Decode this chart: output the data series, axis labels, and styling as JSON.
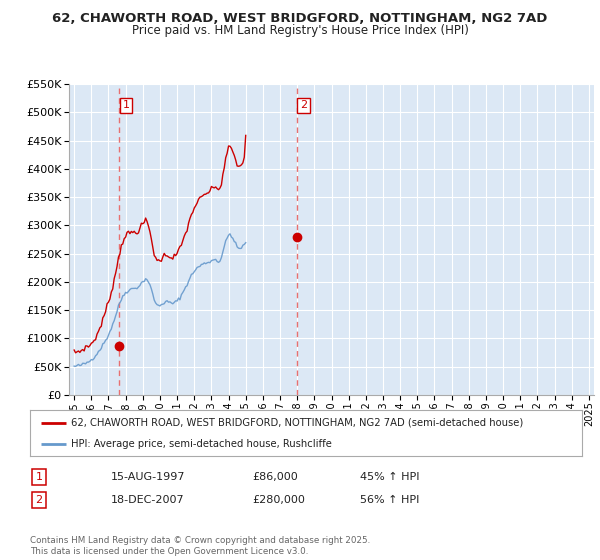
{
  "title": "62, CHAWORTH ROAD, WEST BRIDGFORD, NOTTINGHAM, NG2 7AD",
  "subtitle": "Price paid vs. HM Land Registry's House Price Index (HPI)",
  "legend_line1": "62, CHAWORTH ROAD, WEST BRIDGFORD, NOTTINGHAM, NG2 7AD (semi-detached house)",
  "legend_line2": "HPI: Average price, semi-detached house, Rushcliffe",
  "footnote": "Contains HM Land Registry data © Crown copyright and database right 2025.\nThis data is licensed under the Open Government Licence v3.0.",
  "sale1_date": 1997.62,
  "sale1_price": 86000,
  "sale1_label": "15-AUG-1997",
  "sale1_pct": "45% ↑ HPI",
  "sale2_date": 2007.96,
  "sale2_price": 280000,
  "sale2_label": "18-DEC-2007",
  "sale2_pct": "56% ↑ HPI",
  "property_color": "#cc0000",
  "hpi_color": "#6699cc",
  "dashed_line_color": "#e87070",
  "point_color": "#cc0000",
  "ylim": [
    0,
    550000
  ],
  "yticks": [
    0,
    50000,
    100000,
    150000,
    200000,
    250000,
    300000,
    350000,
    400000,
    450000,
    500000,
    550000
  ],
  "xlim": [
    1994.7,
    2025.3
  ],
  "fig_bg": "#ffffff",
  "plot_bg": "#dce8f5",
  "grid_color": "#ffffff",
  "hpi_seed": 42,
  "prop_seed": 7,
  "hpi_base_values": [
    50000,
    50500,
    51000,
    51500,
    52000,
    52800,
    53500,
    54500,
    55500,
    57000,
    58500,
    60000,
    62000,
    64500,
    67000,
    70000,
    73000,
    76500,
    80000,
    84000,
    88000,
    92000,
    96500,
    101000,
    106000,
    112000,
    118000,
    125000,
    132000,
    140000,
    148000,
    156000,
    163000,
    169000,
    174000,
    178000,
    181000,
    183000,
    185000,
    186000,
    187000,
    188000,
    188500,
    189000,
    190000,
    192000,
    194000,
    197000,
    200000,
    203000,
    205000,
    204000,
    200000,
    194000,
    186000,
    177000,
    169000,
    163000,
    159000,
    157000,
    158000,
    160000,
    162000,
    163000,
    164000,
    164500,
    164000,
    163000,
    162000,
    162000,
    163000,
    164000,
    166000,
    169000,
    172000,
    176000,
    181000,
    186000,
    191000,
    196000,
    201000,
    206000,
    211000,
    215000,
    219000,
    222000,
    224000,
    226000,
    228000,
    230000,
    231000,
    232000,
    233000,
    234000,
    235000,
    236000,
    237000,
    238000,
    239000,
    240000,
    238000,
    235000,
    237000,
    244000,
    253000,
    262000,
    270000,
    277000,
    282000,
    285000,
    282000,
    277000,
    271000,
    266000,
    262000,
    259000,
    259000,
    261000,
    263000,
    265000,
    268000
  ],
  "prop_base_values": [
    75000,
    75500,
    76000,
    76500,
    77000,
    78500,
    80000,
    82000,
    84000,
    85000,
    86000,
    87500,
    90000,
    93500,
    97000,
    101000,
    106000,
    112000,
    118000,
    125000,
    132000,
    140000,
    148000,
    156000,
    164000,
    173000,
    183000,
    193000,
    203000,
    216000,
    229000,
    241000,
    253000,
    264000,
    272000,
    278000,
    282000,
    284000,
    285000,
    286000,
    287000,
    287500,
    288000,
    288000,
    289000,
    291000,
    294000,
    298000,
    302000,
    306000,
    308000,
    306000,
    298000,
    288000,
    276000,
    262000,
    250000,
    242000,
    238000,
    236000,
    238000,
    241000,
    244000,
    246000,
    247000,
    248000,
    247000,
    245000,
    243000,
    243000,
    245000,
    247000,
    250000,
    254000,
    259000,
    265000,
    272000,
    279000,
    287000,
    294000,
    302000,
    310000,
    318000,
    325000,
    331000,
    336000,
    340000,
    343000,
    346000,
    349000,
    351000,
    353000,
    355000,
    357000,
    359000,
    361000,
    363000,
    365000,
    367000,
    369000,
    367000,
    362000,
    365000,
    375000,
    389000,
    403000,
    416000,
    427000,
    436000,
    441000,
    437000,
    429000,
    421000,
    414000,
    408000,
    404000,
    405000,
    408000,
    412000,
    416000,
    460000
  ]
}
